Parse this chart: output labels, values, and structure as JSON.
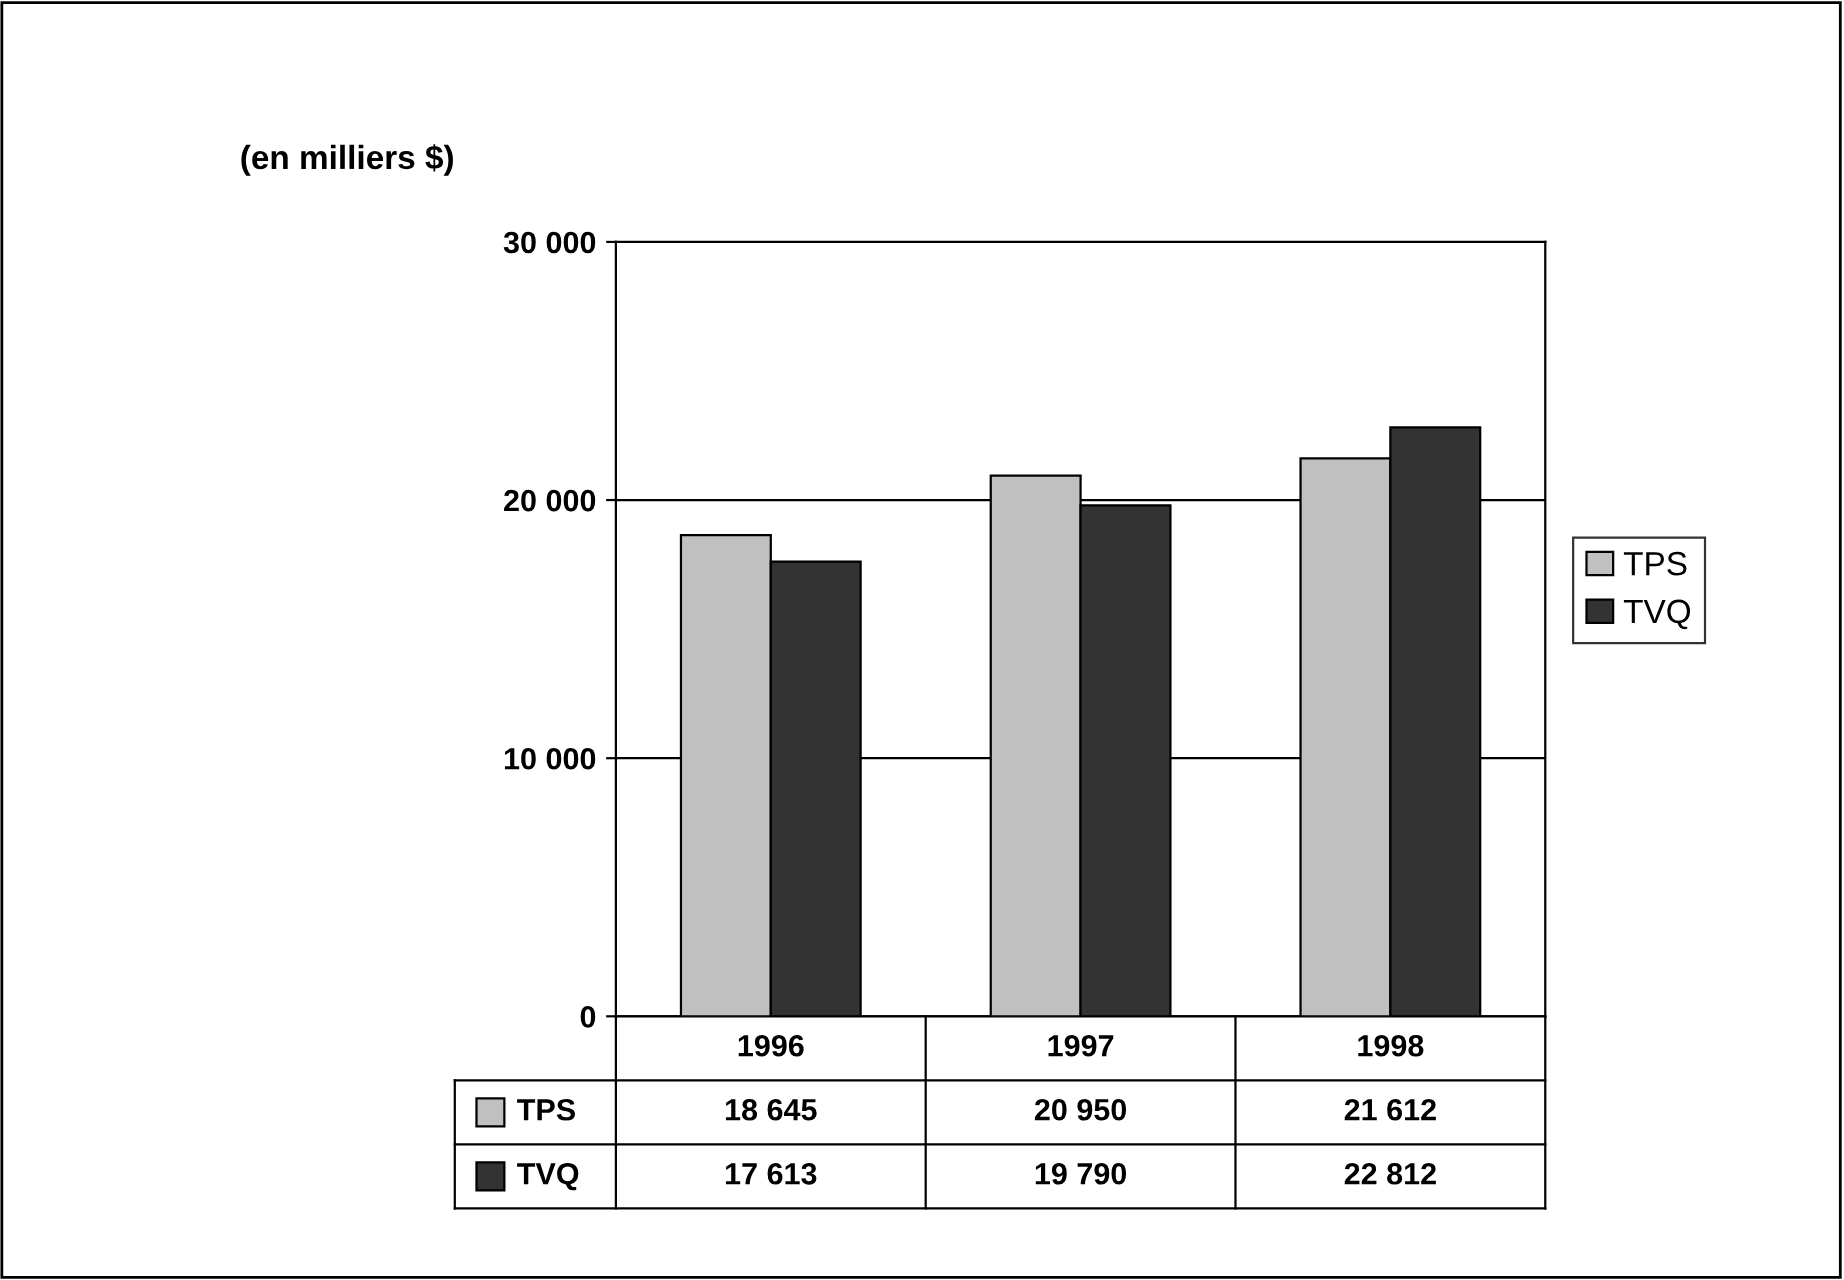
{
  "chart_data": {
    "type": "bar",
    "ylabel": "(en milliers $)",
    "categories": [
      "1996",
      "1997",
      "1998"
    ],
    "series": [
      {
        "name": "TPS",
        "color": "#c0c0c0",
        "values": [
          18645,
          20950,
          21612
        ]
      },
      {
        "name": "TVQ",
        "color": "#333333",
        "values": [
          17613,
          19790,
          22812
        ]
      }
    ],
    "ylim": [
      0,
      30000
    ],
    "yticks": [
      {
        "value": 0,
        "label": "0"
      },
      {
        "value": 10000,
        "label": "10 000"
      },
      {
        "value": 20000,
        "label": "20 000"
      },
      {
        "value": 30000,
        "label": "30 000"
      }
    ],
    "grid": "y",
    "legend": "right",
    "data_labels": true
  }
}
